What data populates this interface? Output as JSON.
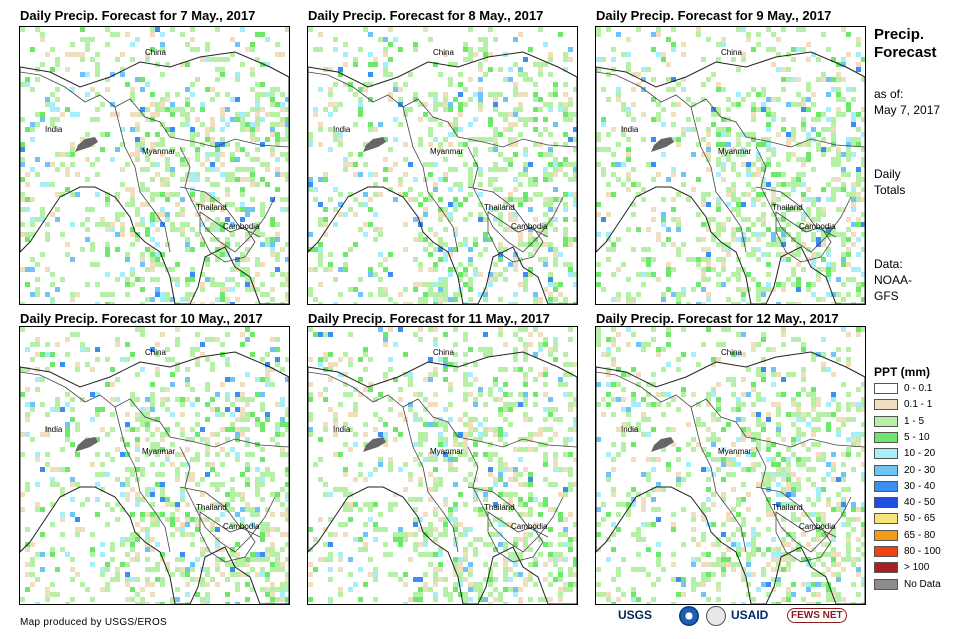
{
  "panels": [
    {
      "title": "Daily Precip. Forecast for 7 May., 2017",
      "labels": {
        "china": "China",
        "india": "India",
        "myanmar": "Myanmar",
        "thailand": "Thailand",
        "cambodia": "Cambodia"
      }
    },
    {
      "title": "Daily Precip. Forecast for 8 May., 2017",
      "labels": {
        "china": "China",
        "india": "India",
        "myanmar": "Myanmar",
        "thailand": "Thailand",
        "cambodia": "Cambodia"
      }
    },
    {
      "title": "Daily Precip. Forecast for 9 May., 2017",
      "labels": {
        "china": "China",
        "india": "India",
        "myanmar": "Myanmar",
        "thailand": "Thailand",
        "cambodia": "Cambodia"
      }
    },
    {
      "title": "Daily Precip. Forecast for 10 May., 2017",
      "labels": {
        "china": "China",
        "india": "India",
        "myanmar": "Myanmar",
        "thailand": "Thailand",
        "cambodia": "Cambodia"
      }
    },
    {
      "title": "Daily Precip. Forecast for 11 May., 2017",
      "labels": {
        "china": "China",
        "india": "India",
        "myanmar": "Myanmar",
        "thailand": "Thailand",
        "cambodia": "Cambodia"
      }
    },
    {
      "title": "Daily Precip. Forecast for 12 May., 2017",
      "labels": {
        "china": "China",
        "india": "India",
        "myanmar": "Myanmar",
        "thailand": "Thailand",
        "cambodia": "Cambodia"
      }
    }
  ],
  "sidebar": {
    "title_line1": "Precip.",
    "title_line2": "Forecast",
    "asof_line1": "as of:",
    "asof_line2": "May 7, 2017",
    "totals_line1": "Daily",
    "totals_line2": "Totals",
    "data_line1": "Data:",
    "data_line2": "NOAA-",
    "data_line3": "GFS"
  },
  "legend": {
    "title": "PPT (mm)",
    "items": [
      {
        "label": "0 - 0.1",
        "color": "#ffffff"
      },
      {
        "label": "0.1 - 1",
        "color": "#f0dfbf"
      },
      {
        "label": "1 - 5",
        "color": "#b5f0a6"
      },
      {
        "label": "5 - 10",
        "color": "#6de86a"
      },
      {
        "label": "10 - 20",
        "color": "#a6eef9"
      },
      {
        "label": "20 - 30",
        "color": "#6fc3f5"
      },
      {
        "label": "30 - 40",
        "color": "#3b8ff0"
      },
      {
        "label": "40 - 50",
        "color": "#1f4fe0"
      },
      {
        "label": "50 - 65",
        "color": "#f8e27a"
      },
      {
        "label": "65 - 80",
        "color": "#f59a13"
      },
      {
        "label": "80 - 100",
        "color": "#f2420f"
      },
      {
        "label": "> 100",
        "color": "#a82020"
      },
      {
        "label": "No Data",
        "color": "#8c8c8c"
      }
    ]
  },
  "footer": {
    "credit": "Map produced by USGS/EROS",
    "logos": [
      "USGS",
      "USAID",
      "FEWS NET"
    ]
  }
}
